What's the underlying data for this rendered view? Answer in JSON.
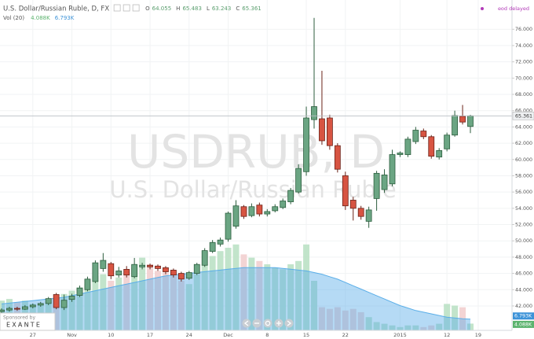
{
  "chart_data": {
    "type": "candlestick",
    "title": "U.S. Dollar/Russian Ruble, D, FX",
    "watermark": "USDRUB, D",
    "watermark_subtitle": "U.S. Dollar/Russian Ruble",
    "status": "eod delayed",
    "ohlc_labels": [
      "O",
      "H",
      "L",
      "C"
    ],
    "sponsor": "Sponsored by",
    "sponsor_name": "EXANTE",
    "categories": [
      null,
      null,
      null,
      null,
      "27",
      null,
      null,
      null,
      null,
      "Nov",
      null,
      null,
      null,
      null,
      "10",
      null,
      null,
      null,
      null,
      "17",
      null,
      null,
      null,
      null,
      "24",
      null,
      null,
      null,
      null,
      "Dec",
      null,
      null,
      null,
      null,
      "8",
      null,
      null,
      null,
      null,
      "15",
      null,
      null,
      null,
      null,
      "22",
      null,
      null,
      null,
      null,
      null,
      null,
      "2015",
      null,
      null,
      null,
      null,
      null,
      "12",
      null,
      null,
      null,
      "19"
    ],
    "open": [
      41.3,
      41.5,
      41.7,
      41.6,
      41.9,
      42.1,
      42.3,
      43.4,
      41.8,
      42.8,
      43.3,
      44.0,
      45.0,
      46.6,
      47.2,
      45.8,
      46.5,
      45.6,
      46.8,
      47.0,
      46.9,
      46.7,
      46.4,
      46.0,
      45.4,
      46.0,
      47.0,
      48.7,
      49.6,
      50.2,
      51.8,
      54.2,
      53.1,
      54.4,
      53.3,
      53.7,
      54.1,
      54.8,
      56.0,
      58.5,
      64.9,
      65.0,
      65.1,
      61.7,
      58.0,
      55.0,
      54.0,
      52.4,
      55.2,
      56.3,
      57.0,
      60.6,
      60.6,
      62.2,
      63.5,
      62.8,
      60.3,
      61.3,
      63.0,
      65.3,
      64.055,
      null
    ],
    "high": [
      41.7,
      41.9,
      41.9,
      42.1,
      42.3,
      42.5,
      43.1,
      43.6,
      43.4,
      43.5,
      44.5,
      45.6,
      47.6,
      48.5,
      47.4,
      46.8,
      46.9,
      47.9,
      47.3,
      47.2,
      47.1,
      46.9,
      46.6,
      46.2,
      46.3,
      47.3,
      49.1,
      50.1,
      50.4,
      53.6,
      55.0,
      54.4,
      54.6,
      54.7,
      53.9,
      54.5,
      55.2,
      56.5,
      59.4,
      66.5,
      77.4,
      70.9,
      65.5,
      62.0,
      58.5,
      55.4,
      54.3,
      54.2,
      58.6,
      58.8,
      61.2,
      61.0,
      62.8,
      64.0,
      63.8,
      63.0,
      61.4,
      63.3,
      66.0,
      66.7,
      65.483,
      null
    ],
    "low": [
      41.1,
      41.3,
      41.4,
      41.5,
      41.7,
      41.9,
      42.1,
      41.6,
      41.5,
      42.5,
      43.1,
      43.8,
      44.8,
      46.2,
      45.3,
      45.5,
      45.5,
      45.4,
      46.5,
      46.5,
      46.3,
      45.9,
      45.5,
      45.0,
      45.2,
      45.8,
      46.8,
      48.5,
      49.3,
      49.9,
      51.5,
      52.7,
      52.9,
      53.0,
      53.0,
      53.5,
      53.9,
      54.5,
      55.8,
      58.0,
      63.8,
      61.8,
      61.2,
      58.4,
      53.8,
      52.5,
      52.6,
      51.6,
      53.7,
      55.9,
      56.7,
      60.3,
      60.3,
      61.9,
      62.5,
      60.1,
      60.0,
      61.0,
      62.8,
      64.3,
      63.243,
      null
    ],
    "close": [
      41.5,
      41.7,
      41.6,
      41.9,
      42.1,
      42.3,
      42.9,
      41.8,
      42.7,
      43.2,
      44.2,
      45.3,
      47.3,
      47.6,
      45.7,
      46.3,
      45.8,
      47.1,
      47.0,
      46.8,
      46.6,
      46.2,
      45.8,
      45.3,
      46.1,
      47.1,
      48.8,
      49.8,
      50.1,
      53.4,
      54.3,
      53.0,
      54.2,
      53.3,
      53.6,
      54.2,
      54.9,
      56.2,
      58.9,
      65.1,
      66.5,
      62.3,
      61.7,
      58.8,
      54.3,
      54.0,
      53.0,
      53.8,
      58.3,
      58.1,
      60.6,
      60.8,
      62.5,
      63.6,
      62.8,
      60.4,
      61.1,
      63.0,
      65.4,
      64.6,
      65.361,
      null
    ],
    "up_color": "#6ba583",
    "down_color": "#d75442",
    "ylim": [
      39.0,
      79.6
    ],
    "yticks": [
      {
        "value": 42,
        "label": "42.000"
      },
      {
        "value": 44,
        "label": "44.000"
      },
      {
        "value": 46,
        "label": "46.000"
      },
      {
        "value": 48,
        "label": "48.000"
      },
      {
        "value": 50,
        "label": "50.000"
      },
      {
        "value": 52,
        "label": "52.000"
      },
      {
        "value": 54,
        "label": "54.000"
      },
      {
        "value": 56,
        "label": "56.000"
      },
      {
        "value": 58,
        "label": "58.000"
      },
      {
        "value": 60,
        "label": "60.000"
      },
      {
        "value": 62,
        "label": "62.000"
      },
      {
        "value": 64,
        "label": "64.000"
      },
      {
        "value": 66,
        "label": "66.000"
      },
      {
        "value": 68,
        "label": "68.000"
      },
      {
        "value": 70,
        "label": "70.000"
      },
      {
        "value": 72,
        "label": "72.000"
      },
      {
        "value": 74,
        "label": "74.000"
      },
      {
        "value": 76,
        "label": "76.000"
      }
    ],
    "grid": true,
    "volume": {
      "name": "Vol (20)",
      "vlim": [
        0,
        200
      ],
      "up_color": "#b7dfc2",
      "down_color": "#f1cccc",
      "values": [
        18,
        19,
        17,
        18,
        16,
        15,
        17,
        20,
        22,
        24,
        26,
        28,
        33,
        34,
        30,
        32,
        35,
        38,
        44,
        40,
        36,
        35,
        33,
        30,
        28,
        34,
        40,
        45,
        48,
        50,
        52,
        46,
        44,
        42,
        40,
        38,
        37,
        40,
        42,
        52,
        30,
        14,
        13,
        14,
        12,
        13,
        11,
        8,
        5,
        4,
        3,
        2,
        3,
        3,
        2,
        3,
        4,
        16,
        15,
        14,
        4.088,
        null
      ],
      "value_labels": [
        null,
        null,
        null,
        null,
        null,
        null,
        null,
        null,
        null,
        null,
        null,
        null,
        null,
        null,
        null,
        null,
        null,
        null,
        null,
        null,
        null,
        null,
        null,
        null,
        null,
        null,
        null,
        null,
        null,
        null,
        null,
        null,
        null,
        null,
        null,
        null,
        null,
        null,
        null,
        null,
        null,
        null,
        null,
        null,
        null,
        null,
        null,
        null,
        null,
        null,
        null,
        null,
        null,
        null,
        null,
        null,
        null,
        null,
        null,
        null,
        "4.088K",
        null
      ]
    },
    "volume_ma": {
      "color": "#5aaee8",
      "values": [
        16,
        16.5,
        17,
        17.5,
        18,
        18.5,
        19,
        19.5,
        20,
        21,
        22,
        23,
        24,
        25,
        26,
        27,
        28,
        29,
        30,
        31,
        32,
        33,
        33.5,
        34,
        34.5,
        35,
        35.5,
        36,
        36.5,
        37,
        37.5,
        38,
        38,
        38,
        38,
        38,
        37.5,
        37,
        36.5,
        36,
        35,
        34,
        32.5,
        31,
        29,
        27,
        25,
        23,
        21,
        19,
        17,
        15,
        13.5,
        12,
        11,
        10,
        9,
        8,
        7.5,
        7,
        6.793,
        null
      ],
      "value_labels": [
        null,
        null,
        null,
        null,
        null,
        null,
        null,
        null,
        null,
        null,
        null,
        null,
        null,
        null,
        null,
        null,
        null,
        null,
        null,
        null,
        null,
        null,
        null,
        null,
        null,
        null,
        null,
        null,
        null,
        null,
        null,
        null,
        null,
        null,
        null,
        null,
        null,
        null,
        null,
        null,
        null,
        null,
        null,
        null,
        null,
        null,
        null,
        null,
        null,
        null,
        null,
        null,
        null,
        null,
        null,
        null,
        null,
        null,
        null,
        null,
        "6.793K",
        null
      ]
    }
  }
}
